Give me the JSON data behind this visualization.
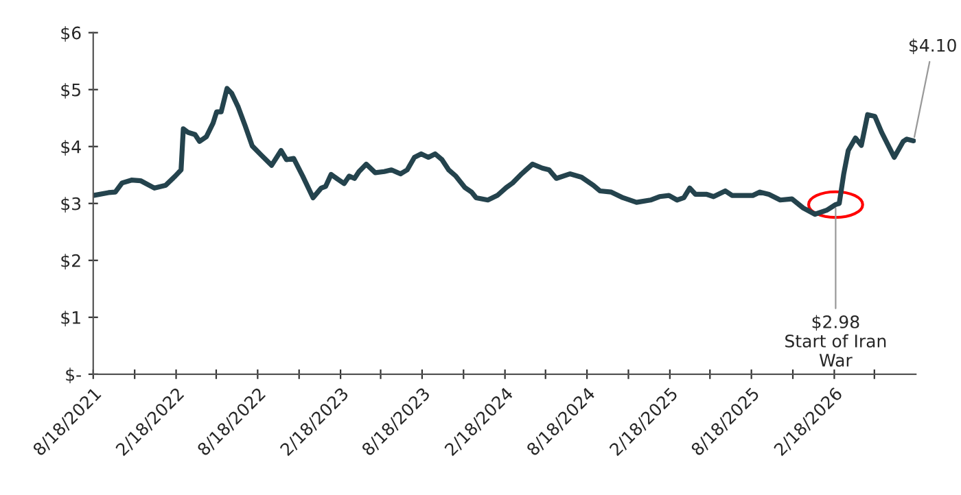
{
  "chart_data": {
    "type": "line",
    "x": [
      "2021-08-18",
      "2021-09-21",
      "2021-10-06",
      "2021-10-21",
      "2021-11-11",
      "2021-12-01",
      "2022-01-01",
      "2022-01-26",
      "2022-02-16",
      "2022-03-01",
      "2022-03-06",
      "2022-03-16",
      "2022-04-01",
      "2022-04-11",
      "2022-04-26",
      "2022-05-11",
      "2022-05-19",
      "2022-05-29",
      "2022-06-11",
      "2022-06-21",
      "2022-07-06",
      "2022-07-21",
      "2022-08-06",
      "2022-08-26",
      "2022-09-18",
      "2022-10-09",
      "2022-10-21",
      "2022-11-06",
      "2022-11-26",
      "2022-12-19",
      "2023-01-06",
      "2023-01-16",
      "2023-01-28",
      "2023-02-11",
      "2023-02-26",
      "2023-03-09",
      "2023-03-21",
      "2023-03-31",
      "2023-04-16",
      "2023-05-06",
      "2023-05-26",
      "2023-06-11",
      "2023-07-01",
      "2023-07-16",
      "2023-08-01",
      "2023-08-16",
      "2023-09-01",
      "2023-09-16",
      "2023-10-01",
      "2023-10-16",
      "2023-11-01",
      "2023-11-21",
      "2023-12-06",
      "2023-12-16",
      "2024-01-11",
      "2024-02-01",
      "2024-02-21",
      "2024-03-06",
      "2024-03-26",
      "2024-04-19",
      "2024-05-11",
      "2024-05-26",
      "2024-06-11",
      "2024-07-11",
      "2024-08-06",
      "2024-09-01",
      "2024-09-16",
      "2024-10-11",
      "2024-11-06",
      "2024-12-06",
      "2025-01-06",
      "2025-01-26",
      "2025-02-16",
      "2025-03-06",
      "2025-03-21",
      "2025-04-03",
      "2025-04-16",
      "2025-05-11",
      "2025-05-26",
      "2025-06-21",
      "2025-07-06",
      "2025-08-21",
      "2025-09-06",
      "2025-09-26",
      "2025-10-21",
      "2025-11-16",
      "2025-12-11",
      "2026-01-06",
      "2026-02-01",
      "2026-02-21",
      "2026-03-01",
      "2026-03-11",
      "2026-03-21",
      "2026-04-06",
      "2026-04-19",
      "2026-05-03",
      "2026-05-19",
      "2026-06-03",
      "2026-07-01",
      "2026-07-21",
      "2026-07-29",
      "2026-08-13"
    ],
    "series": [
      {
        "color": "#24434d",
        "values": [
          3.14,
          3.19,
          3.2,
          3.36,
          3.41,
          3.4,
          3.27,
          3.32,
          3.48,
          3.59,
          4.31,
          4.25,
          4.21,
          4.09,
          4.17,
          4.41,
          4.61,
          4.61,
          5.02,
          4.94,
          4.69,
          4.37,
          4.01,
          3.85,
          3.67,
          3.93,
          3.77,
          3.79,
          3.48,
          3.1,
          3.27,
          3.3,
          3.51,
          3.43,
          3.35,
          3.48,
          3.44,
          3.56,
          3.69,
          3.54,
          3.56,
          3.59,
          3.52,
          3.59,
          3.81,
          3.87,
          3.81,
          3.87,
          3.77,
          3.59,
          3.48,
          3.28,
          3.2,
          3.1,
          3.06,
          3.14,
          3.28,
          3.36,
          3.52,
          3.69,
          3.62,
          3.59,
          3.44,
          3.52,
          3.46,
          3.32,
          3.22,
          3.2,
          3.1,
          3.02,
          3.06,
          3.12,
          3.14,
          3.06,
          3.1,
          3.27,
          3.16,
          3.16,
          3.12,
          3.22,
          3.14,
          3.14,
          3.2,
          3.16,
          3.06,
          3.08,
          2.92,
          2.81,
          2.88,
          2.98,
          3.0,
          3.52,
          3.93,
          4.15,
          4.02,
          4.56,
          4.53,
          4.25,
          3.81,
          4.09,
          4.13,
          4.1
        ]
      }
    ],
    "xlim": [
      "2021-08-18",
      "2026-08-18"
    ],
    "xticks": [
      {
        "value": "2021-08-18",
        "label": "8/18/2021"
      },
      {
        "value": "2021-11-18",
        "label": null
      },
      {
        "value": "2022-02-18",
        "label": "2/18/2022"
      },
      {
        "value": "2022-05-18",
        "label": null
      },
      {
        "value": "2022-08-18",
        "label": "8/18/2022"
      },
      {
        "value": "2022-11-18",
        "label": null
      },
      {
        "value": "2023-02-18",
        "label": "2/18/2023"
      },
      {
        "value": "2023-05-18",
        "label": null
      },
      {
        "value": "2023-08-18",
        "label": "8/18/2023"
      },
      {
        "value": "2023-11-18",
        "label": null
      },
      {
        "value": "2024-02-18",
        "label": "2/18/2024"
      },
      {
        "value": "2024-05-18",
        "label": null
      },
      {
        "value": "2024-08-18",
        "label": "8/18/2024"
      },
      {
        "value": "2024-11-18",
        "label": null
      },
      {
        "value": "2025-02-18",
        "label": "2/18/2025"
      },
      {
        "value": "2025-05-18",
        "label": null
      },
      {
        "value": "2025-08-18",
        "label": "8/18/2025"
      },
      {
        "value": "2025-11-18",
        "label": null
      },
      {
        "value": "2026-02-18",
        "label": "2/18/2026"
      },
      {
        "value": "2026-05-18",
        "label": null
      }
    ],
    "ylim": [
      0,
      6
    ],
    "yticks": [
      {
        "value": 0,
        "label": "$-"
      },
      {
        "value": 1,
        "label": "$1"
      },
      {
        "value": 2,
        "label": "$2"
      },
      {
        "value": 3,
        "label": "$3"
      },
      {
        "value": 4,
        "label": "$4"
      },
      {
        "value": 5,
        "label": "$5"
      },
      {
        "value": 6,
        "label": "$6"
      }
    ],
    "annotations": [
      {
        "text": "$2.98\nStart of Iran\nWar",
        "x": "2026-02-21",
        "y": 2.98
      },
      {
        "text": "$4.10",
        "x": "2026-08-13",
        "y": 4.1
      }
    ],
    "grid": false,
    "legend": false,
    "marker": "none",
    "line_style": "solid"
  }
}
